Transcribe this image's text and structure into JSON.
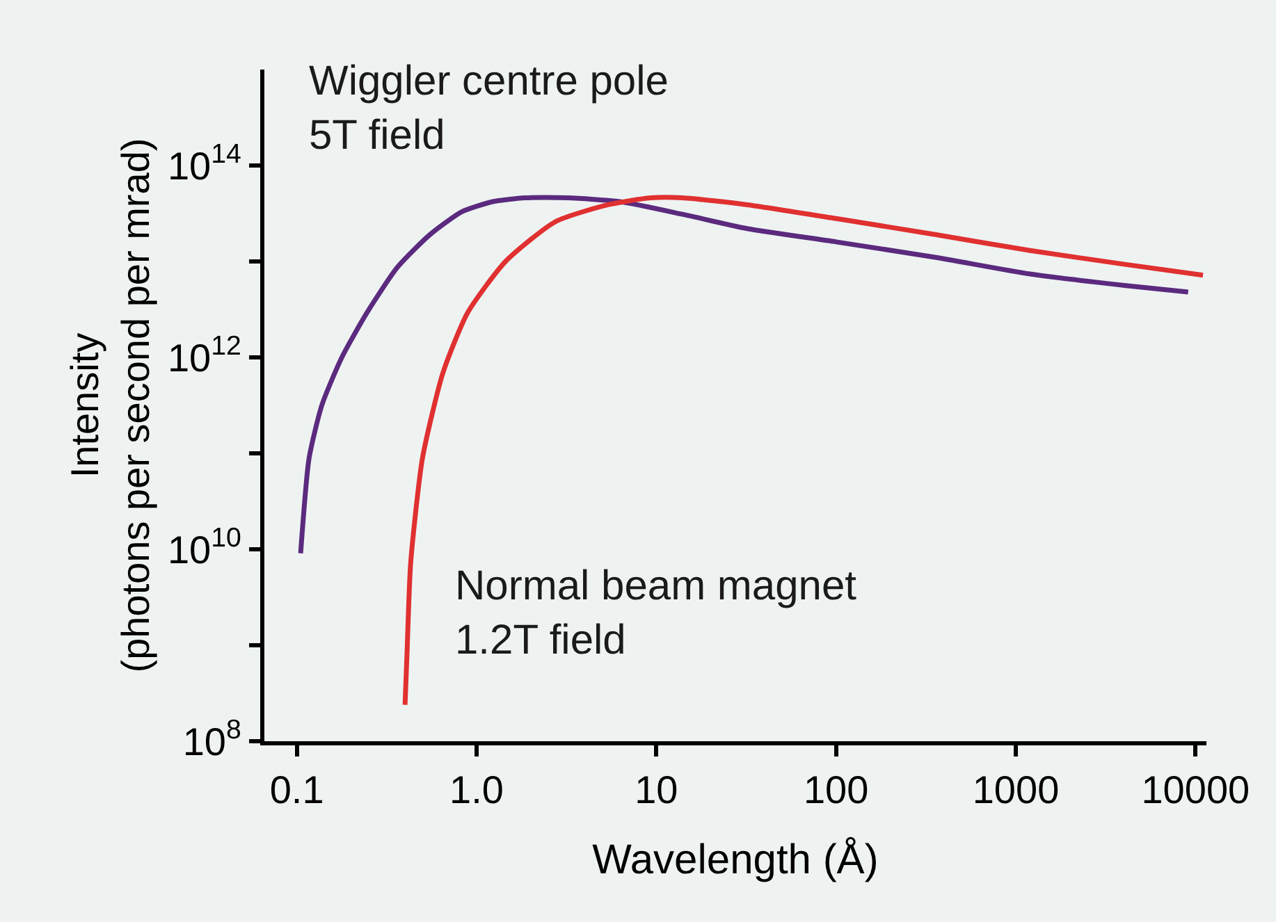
{
  "chart_data": {
    "type": "line",
    "xlabel": "Wavelength (Å)",
    "ylabel": "Intensity\n(photons per second per mrad)",
    "log": "xy",
    "grid": false,
    "xlim": [
      0.066,
      11500
    ],
    "ylim": [
      100000000.0,
      1000000000000000.0
    ],
    "xticks": [
      0.1,
      {
        "value": 1,
        "label": "1.0"
      },
      10,
      100,
      1000,
      10000
    ],
    "yticks": [
      {
        "value": 100000000.0,
        "label": "10$^{8}$"
      },
      {
        "value": 1000000000.0,
        "label": null
      },
      {
        "value": 10000000000.0,
        "label": "10$^{10}$"
      },
      {
        "value": 100000000000.0,
        "label": null
      },
      {
        "value": 1000000000000.0,
        "label": "10$^{12}$"
      },
      {
        "value": 10000000000000.0,
        "label": null
      },
      {
        "value": 100000000000000.0,
        "label": "10$^{14}$"
      }
    ],
    "series": [
      {
        "color": "#5b2a7e",
        "x": [
          0.105,
          0.117,
          0.138,
          0.178,
          0.245,
          0.363,
          0.55,
          0.83,
          1.23,
          1.86,
          3.2,
          6.3,
          14,
          32,
          100,
          360,
          1200,
          4100,
          9100
        ],
        "values": [
          9100000000.0,
          89000000000.0,
          320000000000.0,
          1000000000000.0,
          2900000000000.0,
          8700000000000.0,
          19000000000000.0,
          33000000000000.0,
          42000000000000.0,
          46000000000000.0,
          46000000000000.0,
          42000000000000.0,
          31000000000000.0,
          22000000000000.0,
          16000000000000.0,
          11000000000000.0,
          7400000000000.0,
          5600000000000.0,
          4800000000000.0
        ]
      },
      {
        "color": "#e03030",
        "x": [
          0.4,
          0.41,
          0.43,
          0.5,
          0.65,
          0.89,
          1.45,
          2.75,
          5.4,
          9.3,
          14,
          32,
          100,
          360,
          1200,
          4100,
          11000
        ],
        "values": [
          240000000.0,
          790000000.0,
          7200000000.0,
          89000000000.0,
          690000000000.0,
          2900000000000.0,
          10000000000000.0,
          26000000000000.0,
          39000000000000.0,
          46000000000000.0,
          46000000000000.0,
          39000000000000.0,
          28000000000000.0,
          19000000000000.0,
          13000000000000.0,
          9300000000000.0,
          7200000000000.0
        ]
      }
    ],
    "annotations": [
      "Wiggler centre pole\n5T field",
      "Normal beam magnet\n1.2T field"
    ]
  }
}
